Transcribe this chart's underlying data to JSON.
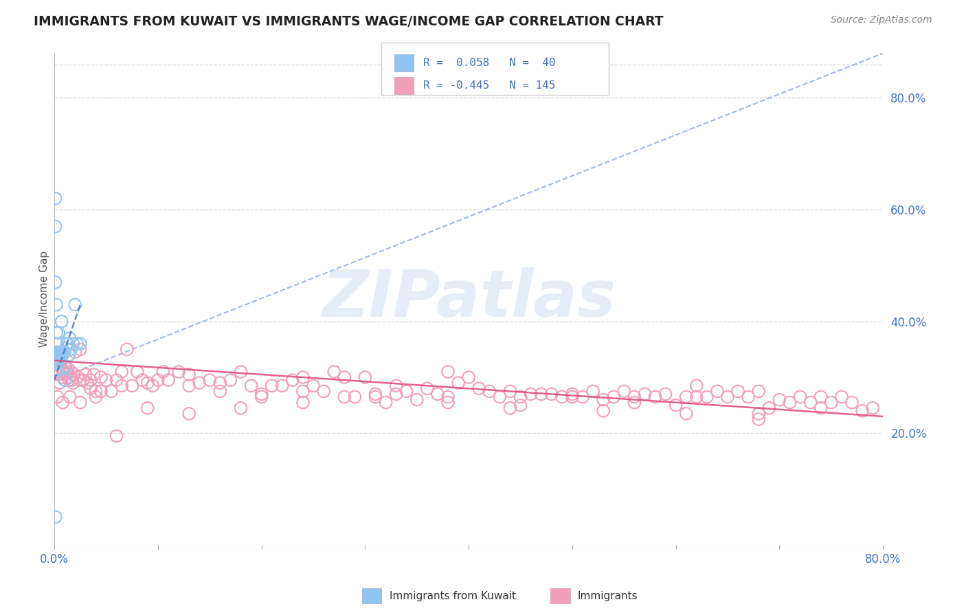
{
  "title": "IMMIGRANTS FROM KUWAIT VS IMMIGRANTS WAGE/INCOME GAP CORRELATION CHART",
  "source": "Source: ZipAtlas.com",
  "ylabel": "Wage/Income Gap",
  "right_yticks": [
    "20.0%",
    "40.0%",
    "60.0%",
    "80.0%"
  ],
  "right_ytick_vals": [
    0.2,
    0.4,
    0.6,
    0.8
  ],
  "watermark": "ZIPatlas",
  "blue_color": "#92C5F0",
  "pink_color": "#F2A0BA",
  "blue_line_color": "#4472C4",
  "pink_line_color": "#E05080",
  "blue_scatter_x": [
    0.001,
    0.001,
    0.001,
    0.001,
    0.001,
    0.002,
    0.002,
    0.002,
    0.002,
    0.002,
    0.002,
    0.003,
    0.003,
    0.003,
    0.003,
    0.003,
    0.004,
    0.004,
    0.004,
    0.005,
    0.005,
    0.006,
    0.006,
    0.007,
    0.007,
    0.008,
    0.009,
    0.01,
    0.01,
    0.011,
    0.012,
    0.013,
    0.014,
    0.015,
    0.016,
    0.018,
    0.02,
    0.022,
    0.025,
    0.001
  ],
  "blue_scatter_y": [
    0.33,
    0.34,
    0.62,
    0.57,
    0.47,
    0.43,
    0.38,
    0.345,
    0.34,
    0.335,
    0.325,
    0.34,
    0.335,
    0.33,
    0.315,
    0.36,
    0.34,
    0.33,
    0.38,
    0.345,
    0.34,
    0.345,
    0.34,
    0.4,
    0.345,
    0.34,
    0.345,
    0.345,
    0.295,
    0.32,
    0.36,
    0.36,
    0.34,
    0.37,
    0.35,
    0.36,
    0.43,
    0.36,
    0.36,
    0.05
  ],
  "pink_scatter_x": [
    0.001,
    0.002,
    0.003,
    0.003,
    0.004,
    0.005,
    0.005,
    0.006,
    0.007,
    0.008,
    0.009,
    0.01,
    0.011,
    0.012,
    0.013,
    0.014,
    0.015,
    0.016,
    0.017,
    0.018,
    0.019,
    0.02,
    0.022,
    0.025,
    0.028,
    0.03,
    0.032,
    0.035,
    0.038,
    0.04,
    0.045,
    0.05,
    0.055,
    0.06,
    0.065,
    0.07,
    0.075,
    0.08,
    0.085,
    0.09,
    0.095,
    0.1,
    0.11,
    0.12,
    0.13,
    0.14,
    0.15,
    0.16,
    0.17,
    0.18,
    0.19,
    0.2,
    0.21,
    0.22,
    0.23,
    0.24,
    0.25,
    0.26,
    0.27,
    0.28,
    0.29,
    0.3,
    0.31,
    0.32,
    0.33,
    0.34,
    0.35,
    0.36,
    0.37,
    0.38,
    0.39,
    0.4,
    0.41,
    0.42,
    0.43,
    0.44,
    0.45,
    0.46,
    0.47,
    0.48,
    0.49,
    0.5,
    0.51,
    0.52,
    0.53,
    0.54,
    0.55,
    0.56,
    0.57,
    0.58,
    0.59,
    0.6,
    0.61,
    0.62,
    0.63,
    0.64,
    0.65,
    0.66,
    0.67,
    0.68,
    0.69,
    0.7,
    0.71,
    0.72,
    0.73,
    0.74,
    0.75,
    0.76,
    0.77,
    0.78,
    0.025,
    0.035,
    0.045,
    0.065,
    0.085,
    0.105,
    0.13,
    0.16,
    0.2,
    0.24,
    0.28,
    0.33,
    0.38,
    0.44,
    0.5,
    0.56,
    0.62,
    0.68,
    0.74,
    0.79,
    0.003,
    0.008,
    0.015,
    0.025,
    0.04,
    0.06,
    0.09,
    0.13,
    0.18,
    0.24,
    0.31,
    0.38,
    0.45,
    0.53,
    0.61,
    0.68
  ],
  "pink_scatter_y": [
    0.345,
    0.34,
    0.335,
    0.31,
    0.305,
    0.33,
    0.29,
    0.325,
    0.315,
    0.3,
    0.31,
    0.32,
    0.305,
    0.31,
    0.315,
    0.295,
    0.3,
    0.31,
    0.295,
    0.29,
    0.305,
    0.345,
    0.3,
    0.35,
    0.295,
    0.305,
    0.29,
    0.295,
    0.305,
    0.275,
    0.3,
    0.295,
    0.275,
    0.295,
    0.285,
    0.35,
    0.285,
    0.31,
    0.295,
    0.29,
    0.285,
    0.295,
    0.295,
    0.31,
    0.305,
    0.29,
    0.295,
    0.29,
    0.295,
    0.31,
    0.285,
    0.27,
    0.285,
    0.285,
    0.295,
    0.3,
    0.285,
    0.275,
    0.31,
    0.3,
    0.265,
    0.3,
    0.27,
    0.255,
    0.285,
    0.275,
    0.26,
    0.28,
    0.27,
    0.31,
    0.29,
    0.3,
    0.28,
    0.275,
    0.265,
    0.275,
    0.265,
    0.27,
    0.27,
    0.27,
    0.265,
    0.27,
    0.265,
    0.275,
    0.26,
    0.265,
    0.275,
    0.265,
    0.27,
    0.265,
    0.27,
    0.25,
    0.265,
    0.285,
    0.265,
    0.275,
    0.265,
    0.275,
    0.265,
    0.275,
    0.245,
    0.26,
    0.255,
    0.265,
    0.255,
    0.265,
    0.255,
    0.265,
    0.255,
    0.24,
    0.295,
    0.28,
    0.275,
    0.31,
    0.295,
    0.31,
    0.285,
    0.275,
    0.265,
    0.275,
    0.265,
    0.27,
    0.255,
    0.245,
    0.265,
    0.255,
    0.265,
    0.235,
    0.245,
    0.245,
    0.265,
    0.255,
    0.265,
    0.255,
    0.265,
    0.195,
    0.245,
    0.235,
    0.245,
    0.255,
    0.265,
    0.265,
    0.25,
    0.24,
    0.235,
    0.225
  ],
  "blue_trend_x": [
    0.0,
    0.025
  ],
  "blue_trend_y": [
    0.295,
    0.43
  ],
  "pink_trend_x": [
    0.0,
    0.8
  ],
  "pink_trend_y": [
    0.33,
    0.23
  ],
  "xmin": 0.0,
  "xmax": 0.8,
  "ymin": 0.0,
  "ymax": 0.88,
  "background_color": "#FFFFFF",
  "grid_color": "#CCCCCC",
  "title_color": "#222222",
  "axis_label_color": "#4472C4",
  "watermark_color": "#C8D8EE",
  "watermark_alpha": 0.45
}
